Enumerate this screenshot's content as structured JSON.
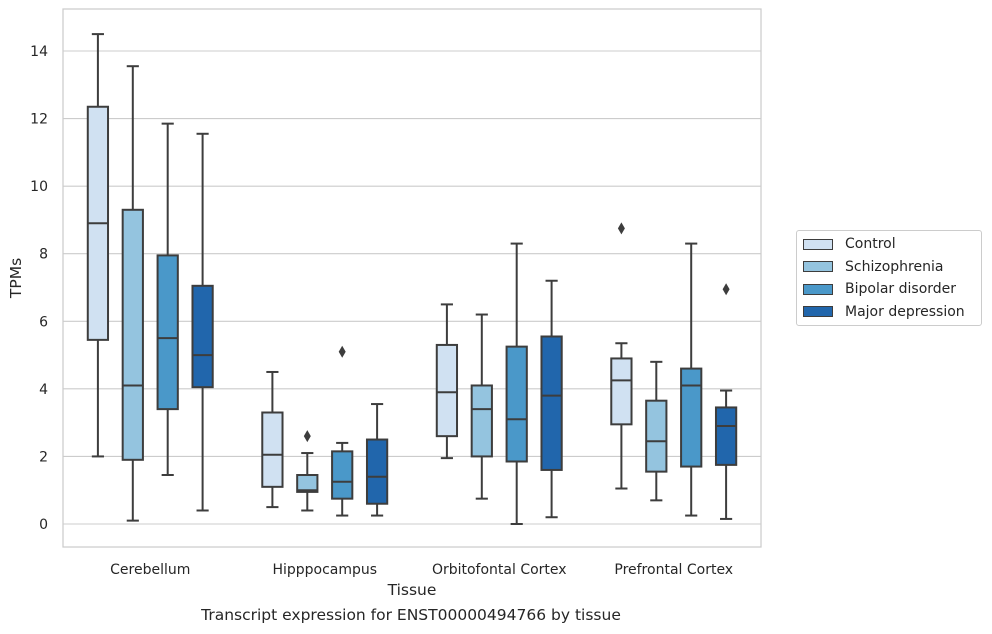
{
  "chart_data": {
    "type": "box",
    "xlabel": "Tissue",
    "ylabel": "TPMs",
    "ylim": [
      -0.7,
      15.2
    ],
    "yticks": [
      0,
      2,
      4,
      6,
      8,
      10,
      12,
      14
    ],
    "grid": "horizontal",
    "legend_position": "right",
    "categories": [
      "Cerebellum",
      "Hipppocampus",
      "Orbitofontal Cortex",
      "Prefrontal Cortex"
    ],
    "series": [
      {
        "name": "Control",
        "color": "#d0e1f2",
        "boxes": [
          {
            "whisker_low": 2.0,
            "q1": 5.45,
            "median": 8.9,
            "q3": 12.35,
            "whisker_high": 14.5,
            "outliers": []
          },
          {
            "whisker_low": 0.5,
            "q1": 1.1,
            "median": 2.05,
            "q3": 3.3,
            "whisker_high": 4.5,
            "outliers": []
          },
          {
            "whisker_low": 1.95,
            "q1": 2.6,
            "median": 3.9,
            "q3": 5.3,
            "whisker_high": 6.5,
            "outliers": []
          },
          {
            "whisker_low": 1.05,
            "q1": 2.95,
            "median": 4.25,
            "q3": 4.9,
            "whisker_high": 5.35,
            "outliers": [
              8.75
            ]
          }
        ]
      },
      {
        "name": "Schizophrenia",
        "color": "#94c4df",
        "boxes": [
          {
            "whisker_low": 0.1,
            "q1": 1.9,
            "median": 4.1,
            "q3": 9.3,
            "whisker_high": 13.55,
            "outliers": []
          },
          {
            "whisker_low": 0.4,
            "q1": 0.95,
            "median": 1.0,
            "q3": 1.45,
            "whisker_high": 2.1,
            "outliers": [
              2.6
            ]
          },
          {
            "whisker_low": 0.75,
            "q1": 2.0,
            "median": 3.4,
            "q3": 4.1,
            "whisker_high": 6.2,
            "outliers": []
          },
          {
            "whisker_low": 0.7,
            "q1": 1.55,
            "median": 2.45,
            "q3": 3.65,
            "whisker_high": 4.8,
            "outliers": []
          }
        ]
      },
      {
        "name": "Bipolar disorder",
        "color": "#4a98c9",
        "boxes": [
          {
            "whisker_low": 1.45,
            "q1": 3.4,
            "median": 5.5,
            "q3": 7.95,
            "whisker_high": 11.85,
            "outliers": []
          },
          {
            "whisker_low": 0.25,
            "q1": 0.75,
            "median": 1.25,
            "q3": 2.15,
            "whisker_high": 2.4,
            "outliers": [
              5.1
            ]
          },
          {
            "whisker_low": 0.0,
            "q1": 1.85,
            "median": 3.1,
            "q3": 5.25,
            "whisker_high": 8.3,
            "outliers": []
          },
          {
            "whisker_low": 0.25,
            "q1": 1.7,
            "median": 4.1,
            "q3": 4.6,
            "whisker_high": 8.3,
            "outliers": []
          }
        ]
      },
      {
        "name": "Major depression",
        "color": "#2166ac",
        "boxes": [
          {
            "whisker_low": 0.4,
            "q1": 4.05,
            "median": 5.0,
            "q3": 7.05,
            "whisker_high": 11.55,
            "outliers": []
          },
          {
            "whisker_low": 0.25,
            "q1": 0.6,
            "median": 1.4,
            "q3": 2.5,
            "whisker_high": 3.55,
            "outliers": []
          },
          {
            "whisker_low": 0.2,
            "q1": 1.6,
            "median": 3.8,
            "q3": 5.55,
            "whisker_high": 7.2,
            "outliers": []
          },
          {
            "whisker_low": 0.15,
            "q1": 1.75,
            "median": 2.9,
            "q3": 3.45,
            "whisker_high": 3.95,
            "outliers": [
              6.95
            ]
          }
        ]
      }
    ]
  },
  "caption": "Transcript expression for ENST00000494766 by tissue"
}
